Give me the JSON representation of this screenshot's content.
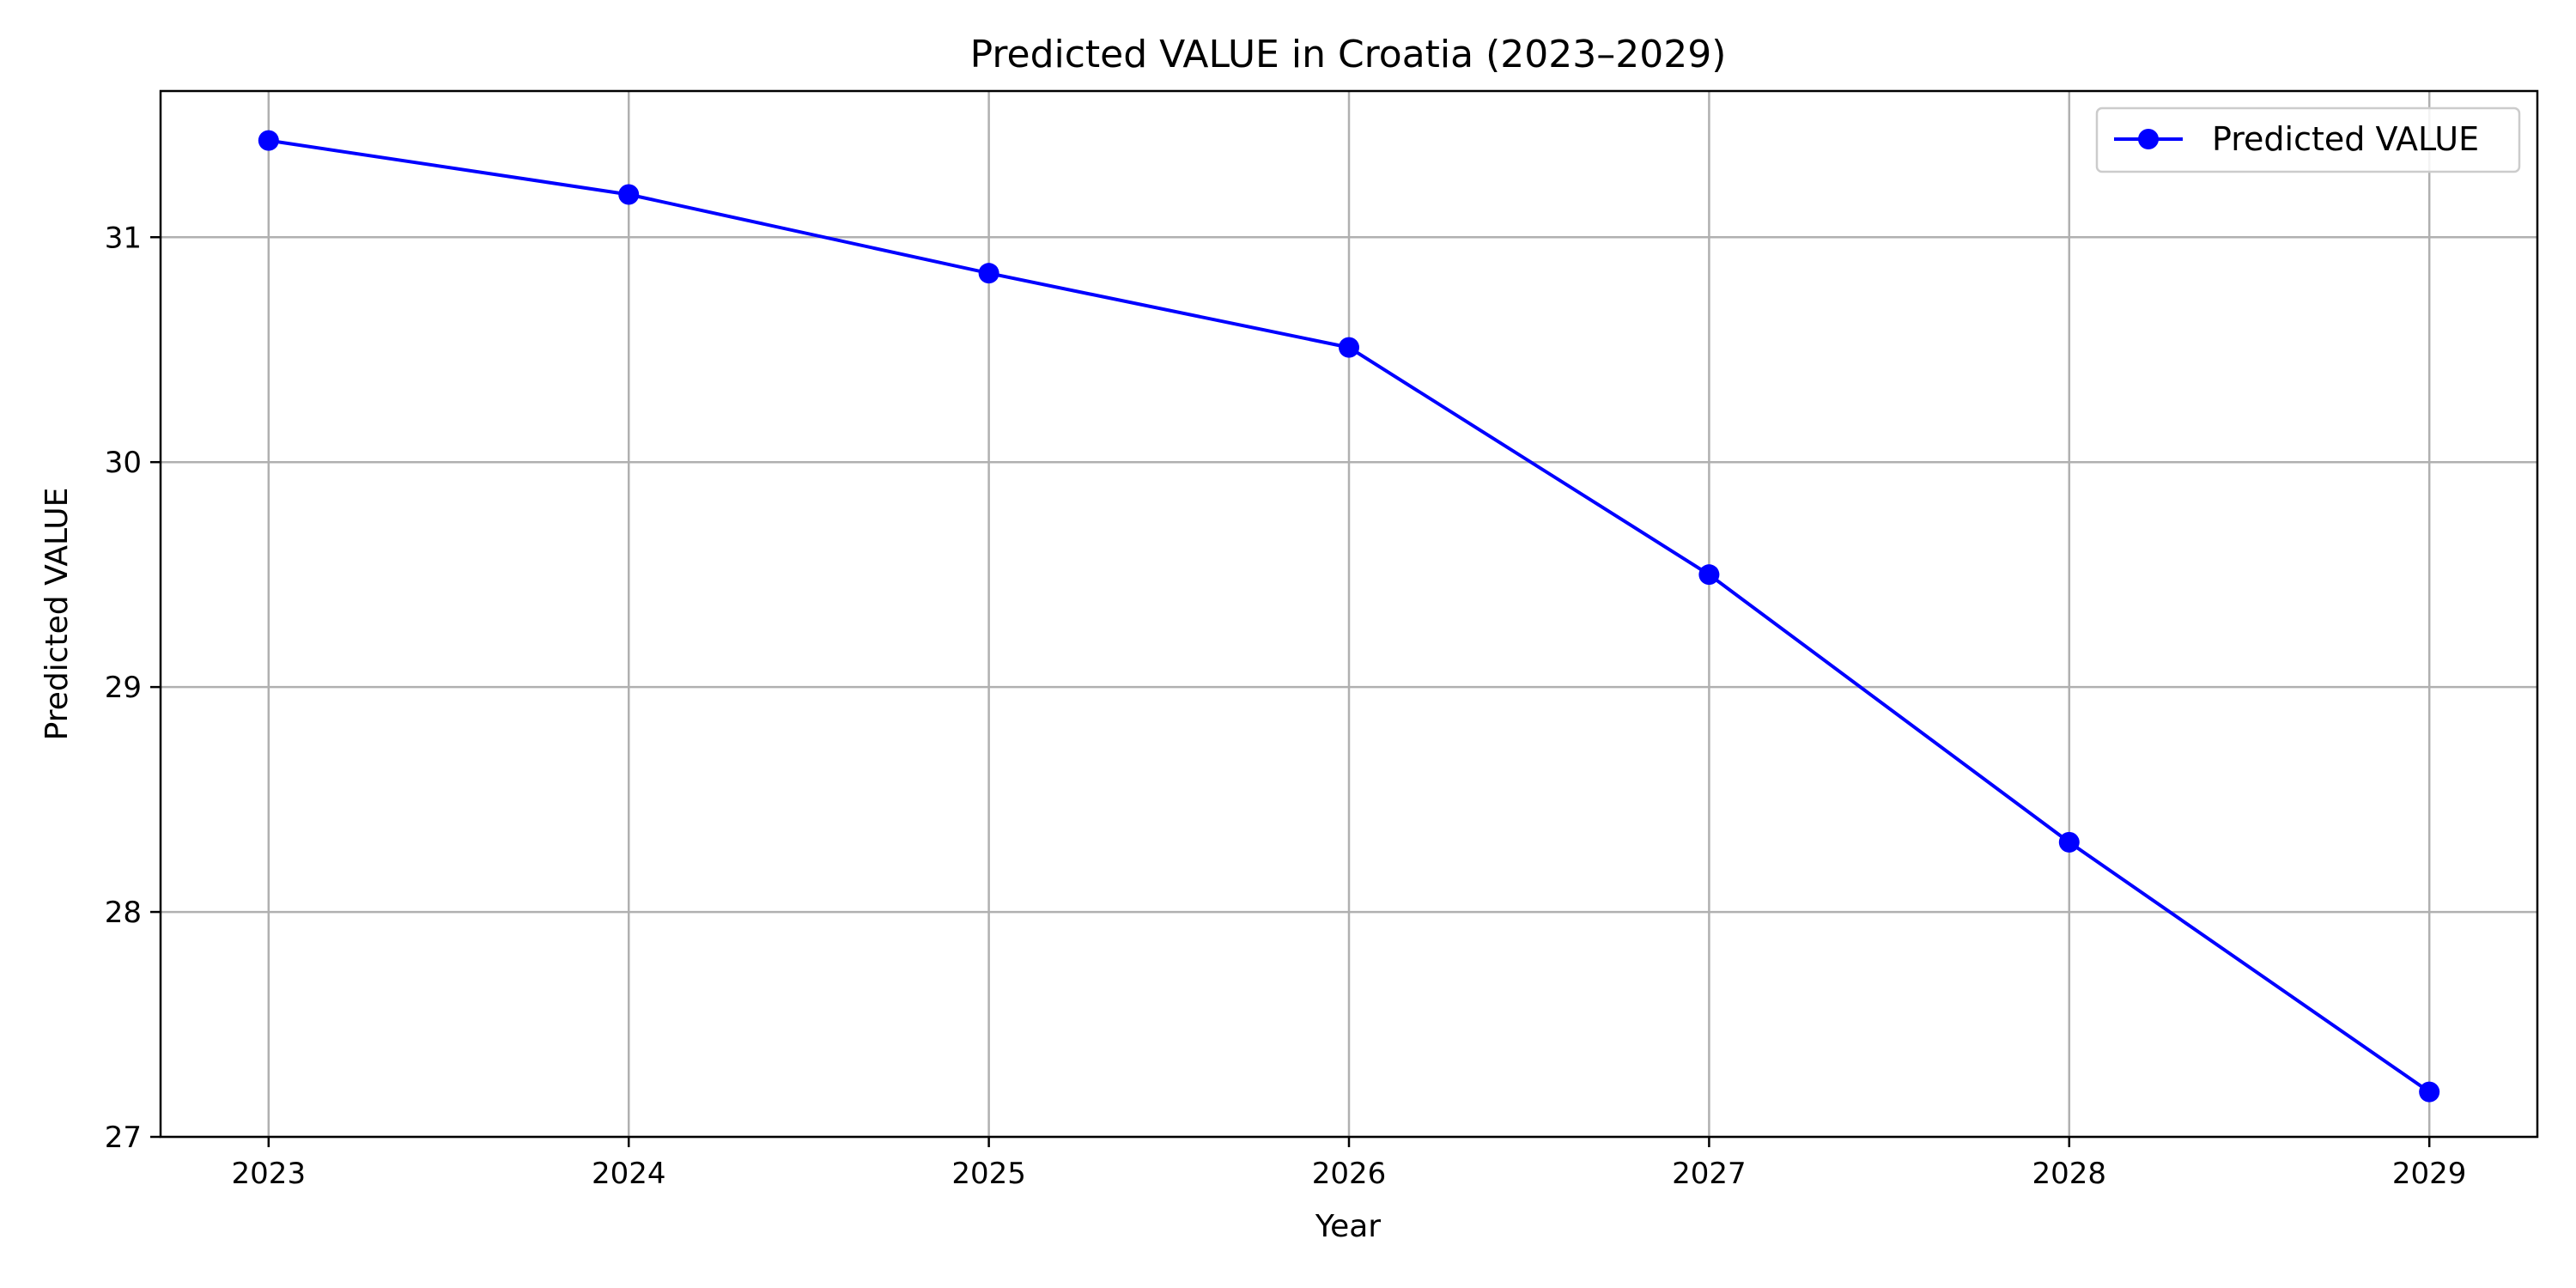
{
  "chart_data": {
    "type": "line",
    "title": "Predicted VALUE in Croatia (2023–2029)",
    "xlabel": "Year",
    "ylabel": "Predicted VALUE",
    "x": [
      2023,
      2024,
      2025,
      2026,
      2027,
      2028,
      2029
    ],
    "x_ticks": [
      "2023",
      "2024",
      "2025",
      "2026",
      "2027",
      "2028",
      "2029"
    ],
    "xlim": [
      2022.7,
      2029.3
    ],
    "ylim": [
      27.0,
      31.65
    ],
    "y_ticks": [
      27,
      28,
      29,
      30,
      31
    ],
    "grid": true,
    "legend_position": "top-right",
    "series": [
      {
        "name": "Predicted VALUE",
        "color": "#0000ff",
        "marker": "circle",
        "values": [
          31.43,
          31.19,
          30.84,
          30.51,
          29.5,
          28.31,
          27.2
        ]
      }
    ]
  }
}
